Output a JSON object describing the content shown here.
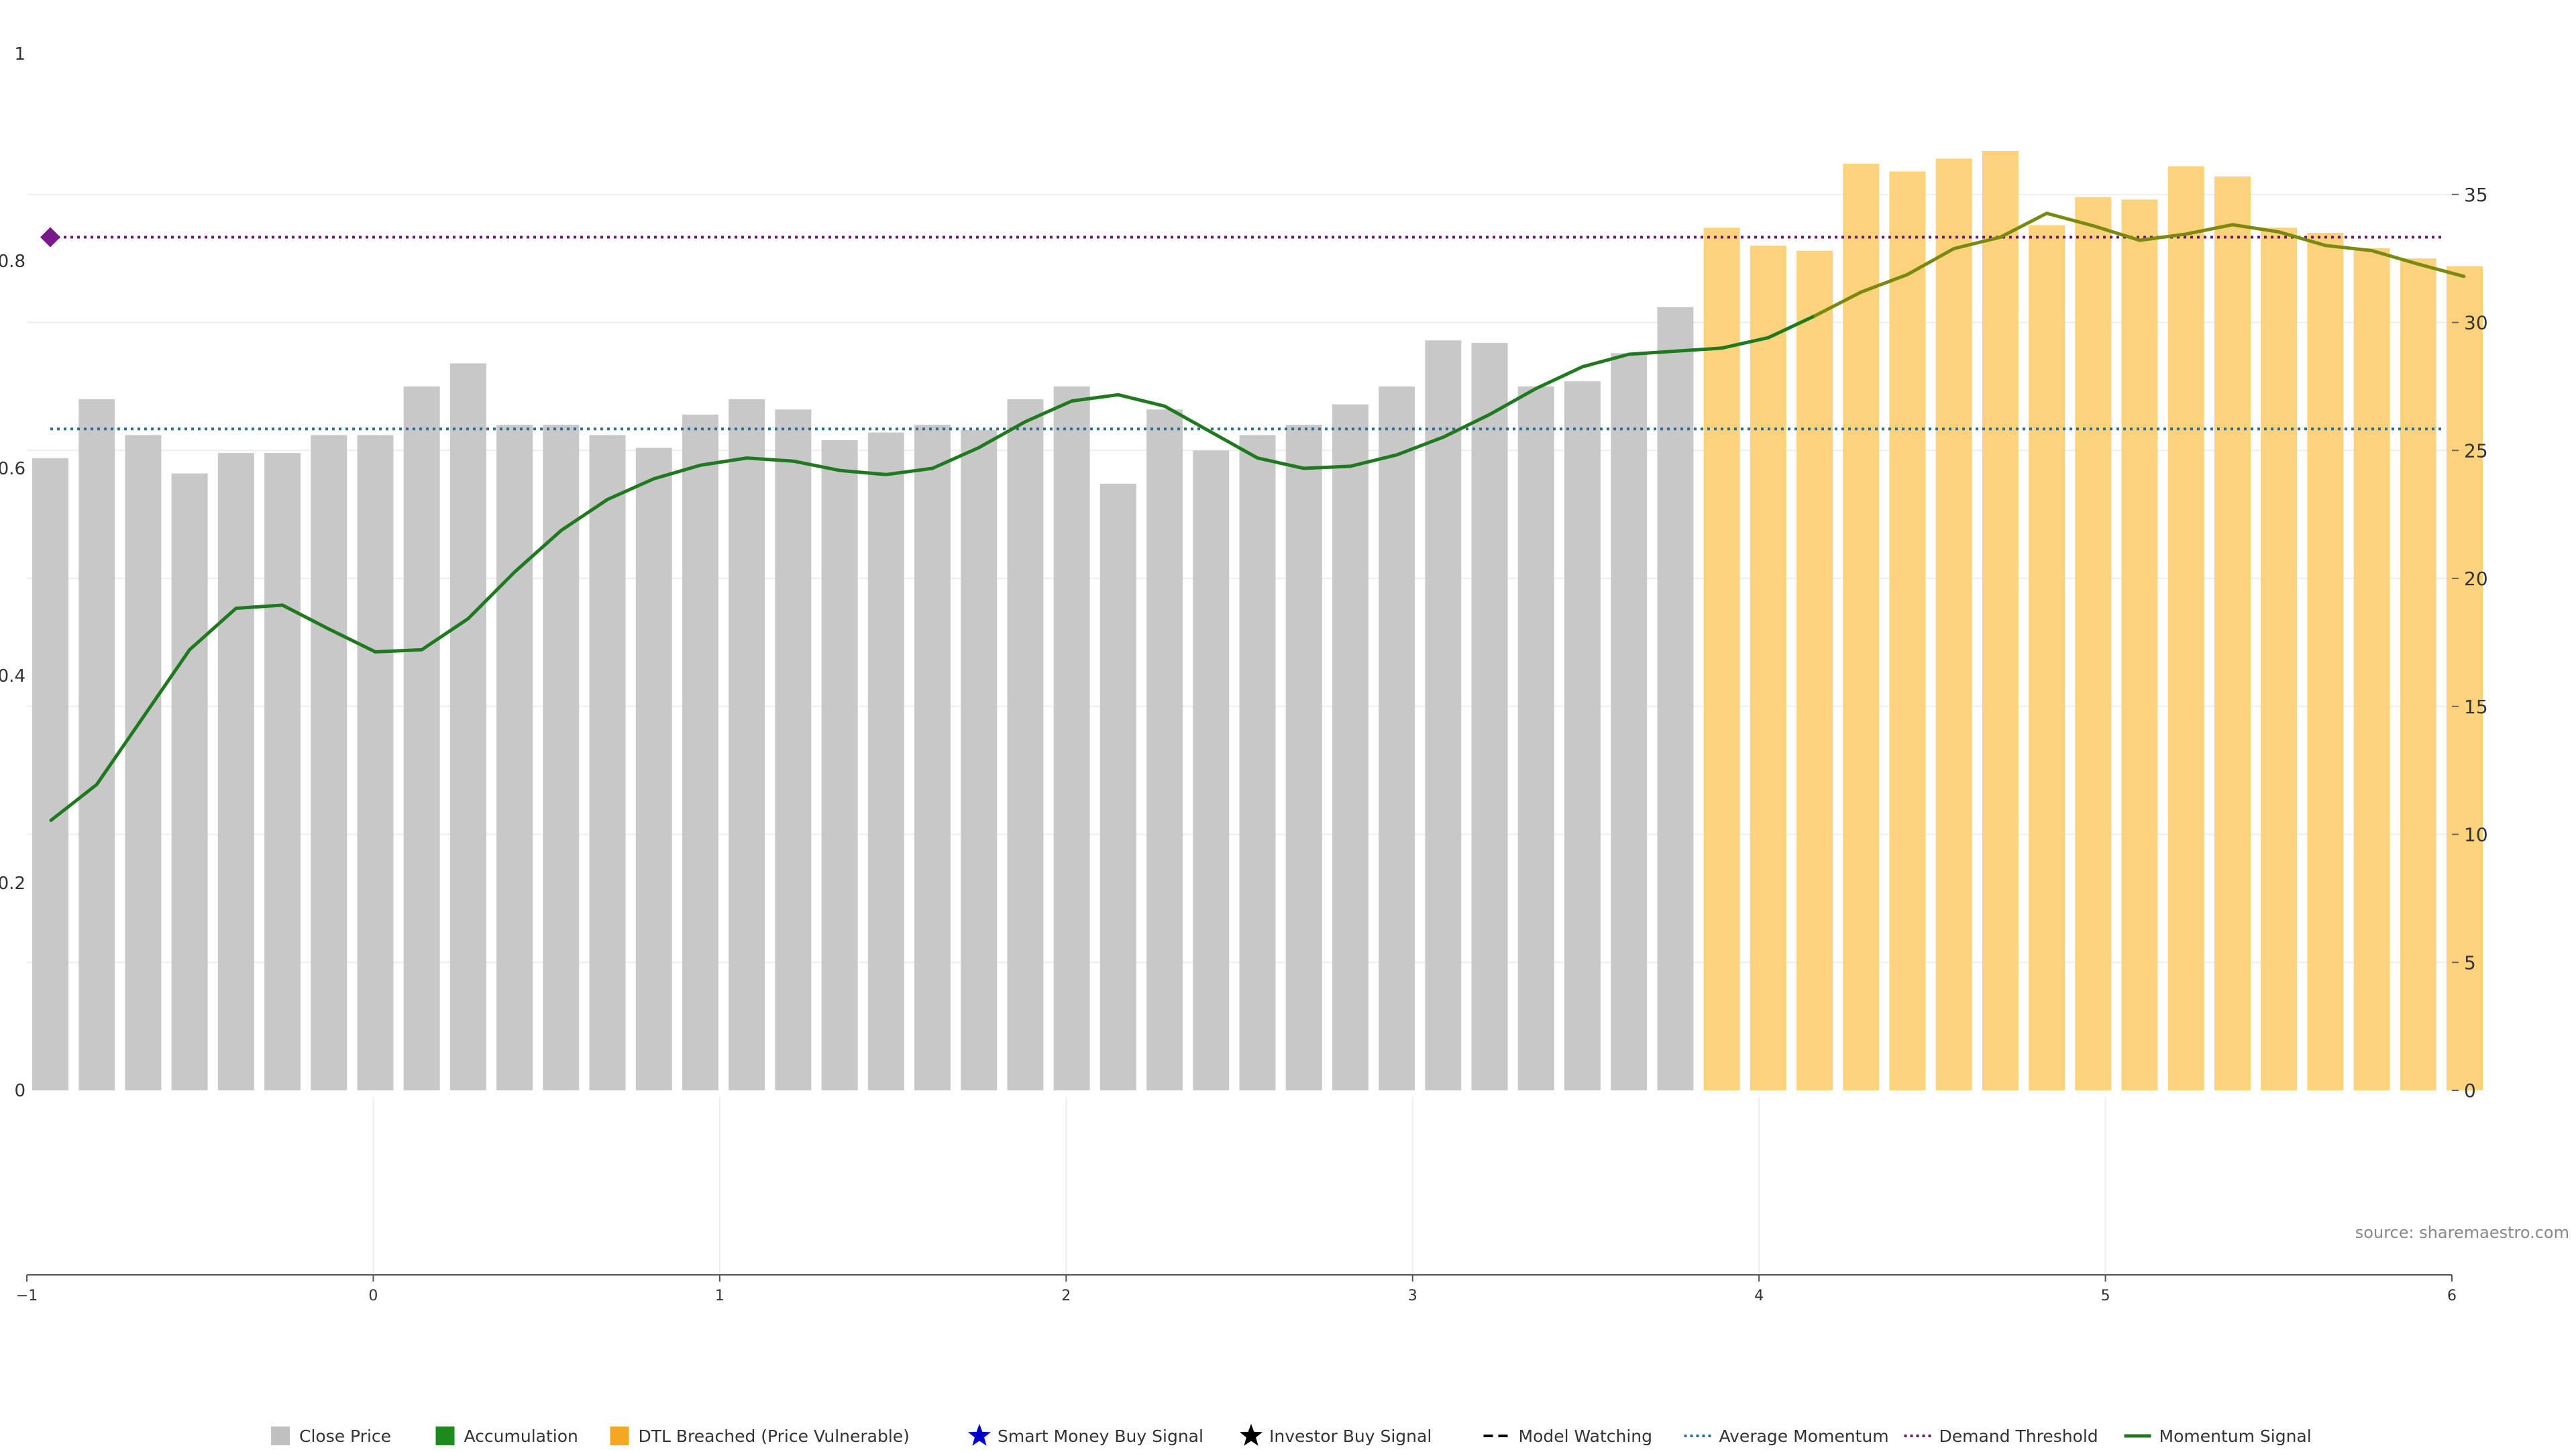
{
  "source_label": "source: sharemaestro.com",
  "colors": {
    "close_bar": "#c8c8c8",
    "dtl_bar": "#fdd27c",
    "momentum_green": "#1f7a1f",
    "momentum_olive": "#7a8a10",
    "average_momentum": "#2a6f97",
    "demand_threshold": "#6a1a6a",
    "legend_accumulation": "#1e8a1e",
    "legend_dtl": "#f5a623",
    "legend_smart_money": "#0000cc",
    "legend_investor": "#000000",
    "grid": "#eeeeee",
    "axis": "#444444"
  },
  "legend": [
    {
      "label": "Close Price",
      "icon": "square-icon",
      "color": "#c0c0c0"
    },
    {
      "label": "Accumulation",
      "icon": "square-icon",
      "color": "#1e8a1e"
    },
    {
      "label": "DTL Breached (Price Vulnerable)",
      "icon": "square-icon",
      "color": "#f5a623"
    },
    {
      "label": "Smart Money Buy Signal",
      "icon": "star-icon",
      "color": "#0000cc"
    },
    {
      "label": "Investor Buy Signal",
      "icon": "star-icon",
      "color": "#000000"
    },
    {
      "label": "Model Watching",
      "icon": "dashed-line-icon",
      "color": "#000000"
    },
    {
      "label": "Average Momentum",
      "icon": "dotted-line-icon",
      "color": "#2a6f97"
    },
    {
      "label": "Demand Threshold",
      "icon": "dotted-line-icon",
      "color": "#6a1a6a"
    },
    {
      "label": "Momentum Signal",
      "icon": "solid-line-icon",
      "color": "#1f7a1f"
    }
  ],
  "chart_data": {
    "type": "bar",
    "left_axis": {
      "range": [
        0,
        1
      ],
      "ticks": [
        0,
        0.2,
        0.4,
        0.6,
        0.8,
        1
      ],
      "tick_labels": [
        "0",
        "0.2",
        "0.4",
        "0.6",
        "0.8",
        "1"
      ]
    },
    "right_axis": {
      "range": [
        0,
        40.5
      ],
      "ticks": [
        0,
        5,
        10,
        15,
        20,
        25,
        30,
        35
      ],
      "tick_labels": [
        "0",
        "5",
        "10",
        "15",
        "20",
        "25",
        "30",
        "35"
      ]
    },
    "x_axis": {
      "range": [
        -1,
        6
      ],
      "ticks": [
        -1,
        0,
        1,
        2,
        3,
        4,
        5,
        6
      ],
      "tick_labels": [
        "−1",
        "0",
        "1",
        "2",
        "3",
        "4",
        "5",
        "6"
      ]
    },
    "grid": true,
    "legend_position": "bottom",
    "close_price": [
      24.7,
      27.0,
      25.6,
      24.1,
      24.9,
      24.9,
      25.6,
      25.6,
      27.5,
      28.4,
      26.0,
      26.0,
      25.6,
      25.1,
      26.4,
      27.0,
      26.6,
      25.4,
      25.7,
      26.0,
      25.8,
      27.0,
      27.5,
      23.7,
      26.6,
      25.0,
      25.6,
      26.0,
      26.8,
      27.5,
      29.3,
      29.2,
      27.5,
      27.7,
      28.8,
      30.6,
      33.7,
      33.0,
      32.8,
      36.2,
      35.9,
      36.4,
      36.7,
      33.8,
      34.9,
      34.8,
      36.1,
      35.7,
      33.7,
      33.5,
      32.9,
      32.5,
      32.2
    ],
    "dtl_breached": [
      false,
      false,
      false,
      false,
      false,
      false,
      false,
      false,
      false,
      false,
      false,
      false,
      false,
      false,
      false,
      false,
      false,
      false,
      false,
      false,
      false,
      false,
      false,
      false,
      false,
      false,
      false,
      false,
      false,
      false,
      false,
      false,
      false,
      false,
      false,
      false,
      true,
      true,
      true,
      true,
      true,
      true,
      true,
      true,
      true,
      true,
      true,
      true,
      true,
      true,
      true,
      true,
      true
    ],
    "momentum_signal": [
      0.26,
      0.295,
      0.36,
      0.425,
      0.465,
      0.468,
      0.445,
      0.423,
      0.425,
      0.455,
      0.5,
      0.54,
      0.57,
      0.59,
      0.603,
      0.61,
      0.607,
      0.598,
      0.594,
      0.6,
      0.62,
      0.645,
      0.665,
      0.671,
      0.66,
      0.635,
      0.61,
      0.6,
      0.602,
      0.613,
      0.63,
      0.652,
      0.677,
      0.698,
      0.71,
      0.713,
      0.716,
      0.726,
      0.747,
      0.77,
      0.787,
      0.812,
      0.823,
      0.846,
      0.834,
      0.82,
      0.826,
      0.835,
      0.828,
      0.815,
      0.81,
      0.797,
      0.785
    ],
    "average_momentum": 0.638,
    "demand_threshold": 0.823,
    "demand_threshold_marker": "diamond"
  }
}
